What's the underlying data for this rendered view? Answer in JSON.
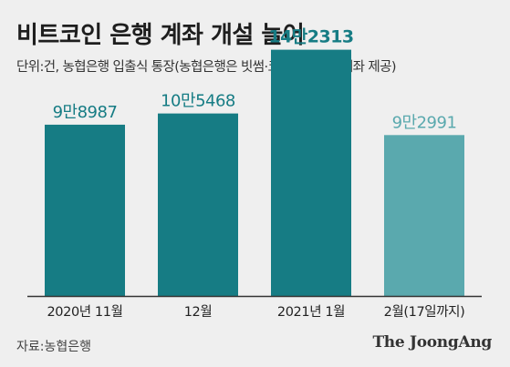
{
  "header": {
    "title": "비트코인 은행 계좌 개설 늘어",
    "subtitle": "단위:건, 농협은행 입출식 통장(농협은행은 빗썸·코인원에 실명계좌 제공)"
  },
  "footer": {
    "source": "자료:농협은행",
    "logo": "The JoongAng"
  },
  "colors": {
    "bar": "#167c84",
    "bar_highlight": "#167c84",
    "bar_partial": "#5aa9ae",
    "label": "#167c84",
    "label_partial": "#5aa9ae",
    "baseline": "#333333"
  },
  "chart_data": {
    "type": "bar",
    "categories": [
      "2020년 11월",
      "12월",
      "2021년 1월",
      "2월(17일까지)"
    ],
    "values": [
      98987,
      105468,
      142313,
      92991
    ],
    "data_labels": [
      "9만8987",
      "10만5468",
      "14만2313",
      "9만2991"
    ],
    "highlight_index": 2,
    "partial_index": 3,
    "ylim": [
      0,
      150000
    ]
  }
}
